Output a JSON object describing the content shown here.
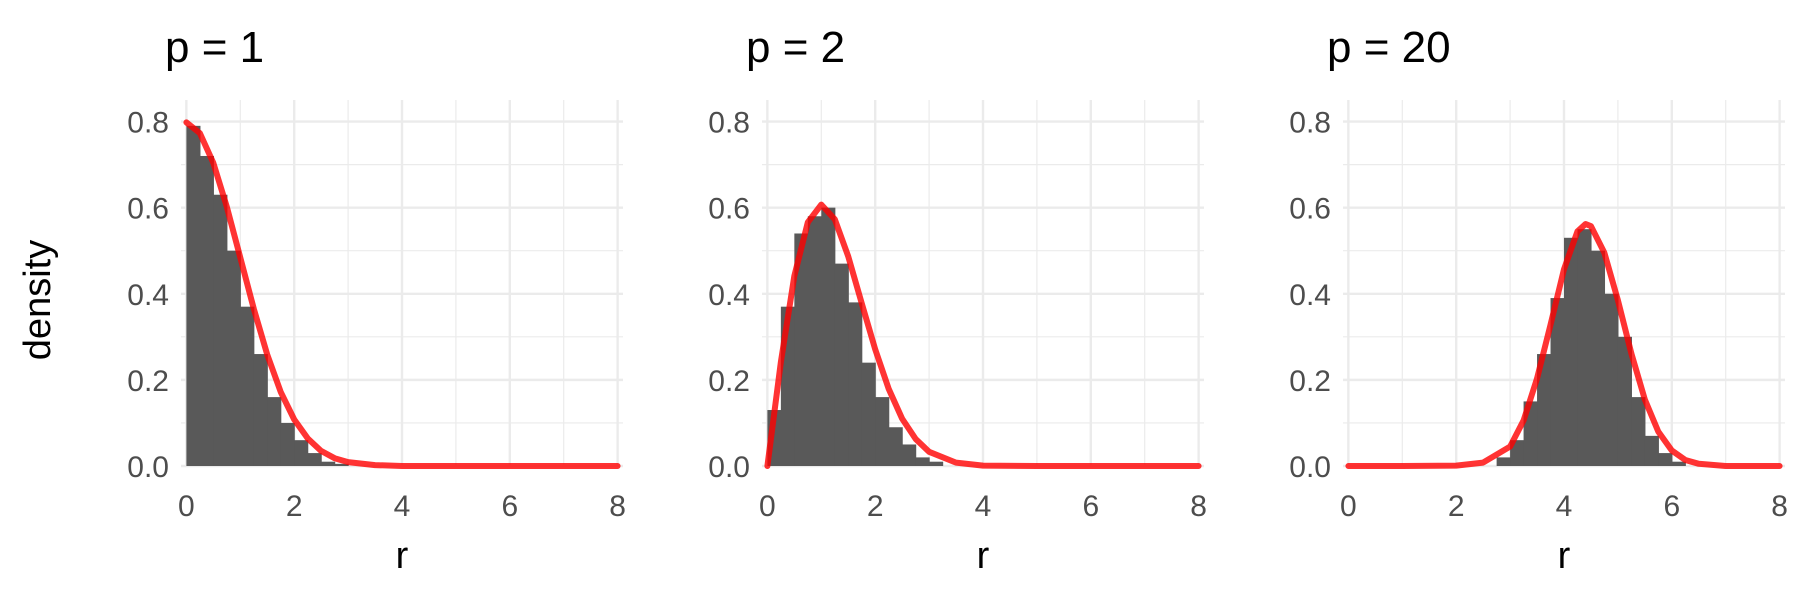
{
  "chart_data": {
    "type": "bar",
    "ylabel": "density",
    "xlabel": "r",
    "xlim": [
      -0.1,
      8.1
    ],
    "ylim": [
      0,
      0.85
    ],
    "x_ticks": [
      0,
      2,
      4,
      6,
      8
    ],
    "x_tick_labels": [
      "0",
      "2",
      "4",
      "6",
      "8"
    ],
    "y_ticks": [
      0.0,
      0.2,
      0.4,
      0.6,
      0.8
    ],
    "y_tick_labels": [
      "0.0",
      "0.2",
      "0.4",
      "0.6",
      "0.8"
    ],
    "bin_width": 0.25,
    "grid": true,
    "bar_color": "#595959",
    "curve_color": "#ff0000",
    "panels": [
      {
        "title": "p = 1",
        "bin_start": 0,
        "histogram": [
          0.79,
          0.72,
          0.63,
          0.5,
          0.37,
          0.26,
          0.16,
          0.1,
          0.06,
          0.03,
          0.01,
          0.005
        ],
        "curve_x": [
          0,
          0.25,
          0.5,
          0.75,
          1,
          1.25,
          1.5,
          1.75,
          2,
          2.25,
          2.5,
          2.75,
          3,
          3.5,
          4,
          5,
          6,
          7,
          8
        ],
        "curve_y": [
          0.798,
          0.773,
          0.704,
          0.602,
          0.484,
          0.365,
          0.259,
          0.172,
          0.108,
          0.064,
          0.035,
          0.018,
          0.009,
          0.002,
          0.0,
          0.0,
          0.0,
          0.0,
          0.0
        ]
      },
      {
        "title": "p = 2",
        "bin_start": 0,
        "histogram": [
          0.13,
          0.37,
          0.54,
          0.58,
          0.6,
          0.47,
          0.38,
          0.24,
          0.16,
          0.09,
          0.05,
          0.02,
          0.01
        ],
        "curve_x": [
          0,
          0.25,
          0.5,
          0.75,
          1,
          1.25,
          1.5,
          1.75,
          2,
          2.25,
          2.5,
          2.75,
          3,
          3.5,
          4,
          5,
          6,
          7,
          8
        ],
        "curve_y": [
          0.0,
          0.242,
          0.441,
          0.566,
          0.607,
          0.573,
          0.487,
          0.378,
          0.271,
          0.179,
          0.11,
          0.063,
          0.033,
          0.008,
          0.001,
          0.0,
          0.0,
          0.0,
          0.0
        ]
      },
      {
        "title": "p = 20",
        "bin_start": 2.75,
        "histogram": [
          0.02,
          0.06,
          0.15,
          0.26,
          0.39,
          0.53,
          0.55,
          0.5,
          0.4,
          0.3,
          0.16,
          0.07,
          0.03,
          0.01
        ],
        "curve_x": [
          0,
          1,
          2,
          2.5,
          3,
          3.25,
          3.5,
          3.75,
          4,
          4.25,
          4.4,
          4.5,
          4.75,
          5,
          5.25,
          5.5,
          5.75,
          6,
          6.25,
          6.5,
          7,
          8
        ],
        "curve_y": [
          0.0,
          0.0,
          0.001,
          0.008,
          0.045,
          0.106,
          0.203,
          0.328,
          0.457,
          0.545,
          0.562,
          0.557,
          0.495,
          0.385,
          0.261,
          0.154,
          0.08,
          0.036,
          0.014,
          0.005,
          0.0,
          0.0
        ]
      }
    ]
  }
}
